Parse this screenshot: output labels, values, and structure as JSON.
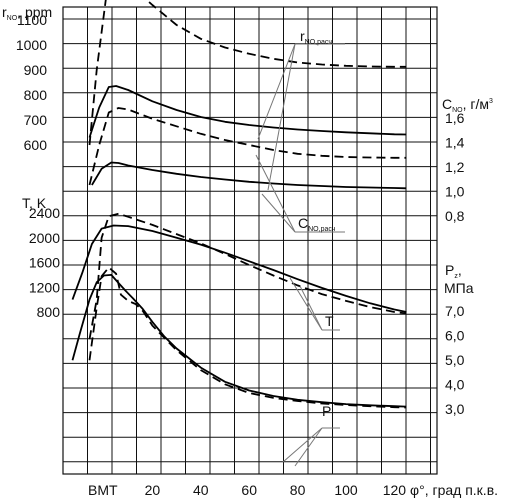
{
  "chart_data": {
    "type": "line",
    "x": {
      "ticks": [
        20,
        40,
        60,
        80,
        100,
        120
      ],
      "special_tick": {
        "value": 0,
        "label": "ВМТ"
      },
      "label_symbol": "φ°",
      "label": ", град п.к.в."
    },
    "axes": {
      "rno": {
        "label_main": "r",
        "label_sub": "NO",
        "label_unit": ", ppm",
        "ticks": [
          600,
          700,
          800,
          900,
          1000,
          1100
        ]
      },
      "T": {
        "label": "T, K",
        "ticks": [
          800,
          1200,
          1600,
          2000,
          2400
        ]
      },
      "cno": {
        "label_main": "C",
        "label_sub": "NO",
        "label_unit": ", г/м",
        "label_sup": "3",
        "ticks": [
          "0,8",
          "1,0",
          "1,2",
          "1,4",
          "1,6"
        ]
      },
      "pz": {
        "label_main": "P",
        "label_sub": "z",
        "label_unit": "МПа",
        "ticks": [
          "3,0",
          "4,0",
          "5,0",
          "6,0",
          "7,0"
        ]
      }
    },
    "annotations": {
      "r_calc": {
        "main": "r",
        "sub": "NO,расч"
      },
      "c_calc": {
        "main": "C",
        "sub": "NO,расч"
      },
      "T": "T",
      "P": "P"
    },
    "series": [
      {
        "group": "rno",
        "style": "dashed",
        "axis": "rno",
        "points": [
          [
            -6,
            600
          ],
          [
            -3,
            900
          ],
          [
            1,
            1200
          ],
          [
            6,
            1265
          ],
          [
            10,
            1245
          ],
          [
            20,
            1160
          ],
          [
            30,
            1080
          ],
          [
            40,
            1025
          ],
          [
            50,
            990
          ],
          [
            60,
            965
          ],
          [
            70,
            945
          ],
          [
            80,
            930
          ],
          [
            90,
            922
          ],
          [
            100,
            917
          ],
          [
            110,
            914
          ],
          [
            120,
            913
          ],
          [
            125,
            913
          ]
        ]
      },
      {
        "group": "rno",
        "style": "solid",
        "axis": "rno",
        "points": [
          [
            -6,
            630
          ],
          [
            -2,
            750
          ],
          [
            2,
            832
          ],
          [
            5,
            836
          ],
          [
            10,
            820
          ],
          [
            20,
            775
          ],
          [
            30,
            740
          ],
          [
            40,
            712
          ],
          [
            50,
            693
          ],
          [
            60,
            680
          ],
          [
            70,
            670
          ],
          [
            80,
            662
          ],
          [
            90,
            656
          ],
          [
            100,
            651
          ],
          [
            110,
            647
          ],
          [
            120,
            643
          ],
          [
            125,
            642
          ]
        ]
      },
      {
        "group": "cno",
        "style": "dashed",
        "axis": "rno",
        "points": [
          [
            -6,
            440
          ],
          [
            -2,
            600
          ],
          [
            2,
            730
          ],
          [
            6,
            748
          ],
          [
            10,
            742
          ],
          [
            20,
            705
          ],
          [
            30,
            675
          ],
          [
            40,
            645
          ],
          [
            50,
            620
          ],
          [
            60,
            600
          ],
          [
            70,
            580
          ],
          [
            80,
            565
          ],
          [
            90,
            557
          ],
          [
            100,
            552
          ],
          [
            110,
            550
          ],
          [
            120,
            549
          ],
          [
            125,
            549
          ]
        ]
      },
      {
        "group": "cno",
        "style": "solid",
        "axis": "rno",
        "points": [
          [
            -5,
            440
          ],
          [
            -1,
            505
          ],
          [
            3,
            530
          ],
          [
            6,
            528
          ],
          [
            10,
            518
          ],
          [
            20,
            500
          ],
          [
            30,
            485
          ],
          [
            40,
            472
          ],
          [
            50,
            462
          ],
          [
            60,
            453
          ],
          [
            70,
            446
          ],
          [
            80,
            440
          ],
          [
            90,
            436
          ],
          [
            100,
            432
          ],
          [
            110,
            430
          ],
          [
            120,
            428
          ],
          [
            125,
            427
          ]
        ]
      },
      {
        "group": "T",
        "style": "dashed",
        "axis": "T",
        "points": [
          [
            -6,
            360
          ],
          [
            -3,
            1000
          ],
          [
            -1,
            2000
          ],
          [
            2,
            2350
          ],
          [
            6,
            2390
          ],
          [
            10,
            2340
          ],
          [
            20,
            2210
          ],
          [
            30,
            2060
          ],
          [
            40,
            1910
          ],
          [
            50,
            1740
          ],
          [
            60,
            1560
          ],
          [
            70,
            1390
          ],
          [
            80,
            1230
          ],
          [
            90,
            1090
          ],
          [
            100,
            980
          ],
          [
            110,
            880
          ],
          [
            120,
            800
          ],
          [
            125,
            775
          ]
        ]
      },
      {
        "group": "T",
        "style": "solid",
        "axis": "T",
        "points": [
          [
            -13,
            1000
          ],
          [
            -9,
            1430
          ],
          [
            -5,
            1900
          ],
          [
            -1,
            2150
          ],
          [
            4,
            2200
          ],
          [
            10,
            2190
          ],
          [
            20,
            2110
          ],
          [
            30,
            2000
          ],
          [
            40,
            1890
          ],
          [
            50,
            1760
          ],
          [
            60,
            1620
          ],
          [
            70,
            1480
          ],
          [
            80,
            1330
          ],
          [
            90,
            1190
          ],
          [
            100,
            1060
          ],
          [
            110,
            940
          ],
          [
            120,
            840
          ],
          [
            125,
            800
          ]
        ]
      },
      {
        "group": "P",
        "style": "dashed",
        "axis": "T",
        "points": [
          [
            -6,
            20
          ],
          [
            -3,
            870
          ],
          [
            -1,
            1380
          ],
          [
            2,
            1520
          ],
          [
            5,
            1420
          ],
          [
            7,
            1080
          ],
          [
            10,
            980
          ],
          [
            13,
            930
          ],
          [
            16,
            820
          ],
          [
            20,
            580
          ],
          [
            25,
            380
          ],
          [
            30,
            180
          ],
          [
            40,
            -140
          ],
          [
            50,
            -370
          ],
          [
            60,
            -510
          ],
          [
            70,
            -590
          ],
          [
            80,
            -640
          ],
          [
            90,
            -680
          ],
          [
            100,
            -705
          ],
          [
            110,
            -725
          ],
          [
            120,
            -740
          ],
          [
            125,
            -745
          ]
        ]
      },
      {
        "group": "P",
        "style": "solid",
        "axis": "T",
        "points": [
          [
            -13,
            20
          ],
          [
            -10,
            450
          ],
          [
            -6,
            1000
          ],
          [
            -3,
            1280
          ],
          [
            0,
            1390
          ],
          [
            3,
            1400
          ],
          [
            6,
            1270
          ],
          [
            9,
            1140
          ],
          [
            12,
            1020
          ],
          [
            16,
            850
          ],
          [
            20,
            640
          ],
          [
            25,
            400
          ],
          [
            30,
            210
          ],
          [
            40,
            -100
          ],
          [
            50,
            -330
          ],
          [
            60,
            -470
          ],
          [
            70,
            -560
          ],
          [
            80,
            -620
          ],
          [
            90,
            -660
          ],
          [
            100,
            -690
          ],
          [
            110,
            -710
          ],
          [
            120,
            -725
          ],
          [
            125,
            -730
          ]
        ]
      }
    ]
  }
}
